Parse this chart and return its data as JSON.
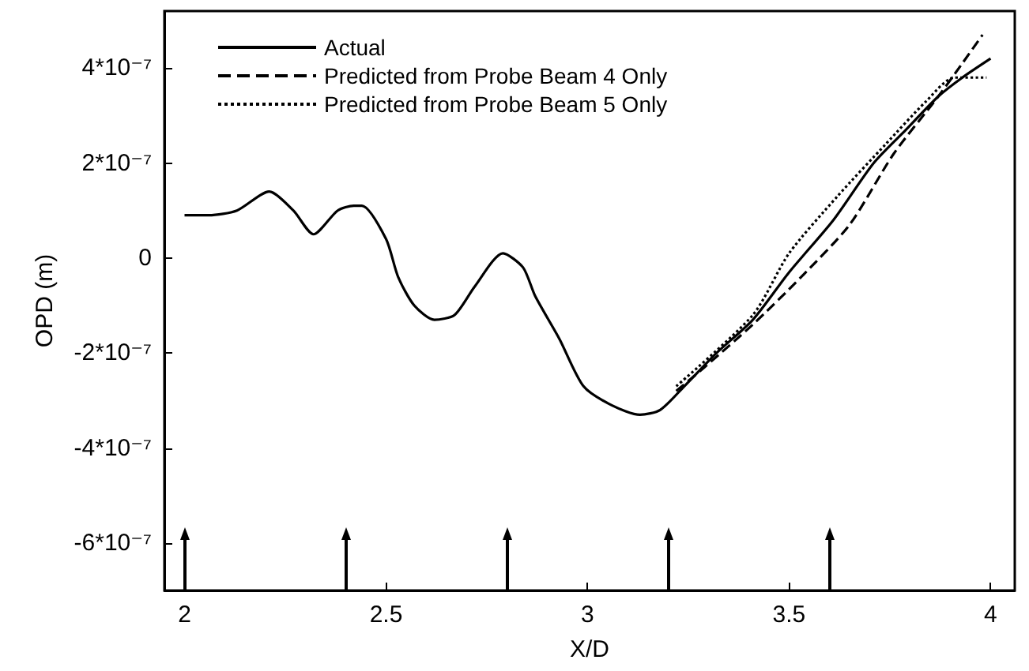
{
  "chart_data": {
    "type": "line",
    "xlabel": "X/D",
    "ylabel": "OPD (m)",
    "xlim": [
      1.95,
      4.06
    ],
    "xticks": [
      2,
      2.5,
      3,
      3.5,
      4
    ],
    "ylim": [
      -7e-07,
      5.2e-07
    ],
    "yticks": [
      {
        "value": -6e-07,
        "label": "-6*10⁻⁷"
      },
      {
        "value": -4e-07,
        "label": "-4*10⁻⁷"
      },
      {
        "value": -2e-07,
        "label": "-2*10⁻⁷"
      },
      {
        "value": 0,
        "label": "0"
      },
      {
        "value": 2e-07,
        "label": "2*10⁻⁷"
      },
      {
        "value": 4e-07,
        "label": "4*10⁻⁷"
      }
    ],
    "grid": false,
    "legend": "top left",
    "marker": "none",
    "series": [
      {
        "name": "Actual",
        "color": "#000000",
        "line_style": "solid",
        "x": [
          2.0,
          2.06,
          2.13,
          2.21,
          2.27,
          2.32,
          2.38,
          2.42,
          2.44,
          2.5,
          2.53,
          2.57,
          2.62,
          2.67,
          2.72,
          2.79,
          2.84,
          2.87,
          2.93,
          2.99,
          3.06,
          3.13,
          3.18,
          3.24,
          3.32,
          3.41,
          3.5,
          3.61,
          3.71,
          3.79,
          3.87,
          3.93,
          4.0
        ],
        "values": [
          9e-08,
          9e-08,
          1e-07,
          1.4e-07,
          1e-07,
          5e-08,
          1e-07,
          1.1e-07,
          1.1e-07,
          4e-08,
          -4e-08,
          -1e-07,
          -1.3e-07,
          -1.2e-07,
          -6e-08,
          1e-08,
          -2e-08,
          -8e-08,
          -1.7e-07,
          -2.7e-07,
          -3.1e-07,
          -3.3e-07,
          -3.2e-07,
          -2.7e-07,
          -2e-07,
          -1.3e-07,
          -3e-08,
          8e-08,
          2e-07,
          2.7e-07,
          3.4e-07,
          3.8e-07,
          4.2e-07
        ]
      },
      {
        "name": "Predicted from Probe Beam 4 Only",
        "color": "#000000",
        "line_style": "dashed",
        "x": [
          3.22,
          3.29,
          3.41,
          3.53,
          3.65,
          3.76,
          3.87,
          3.93,
          3.98
        ],
        "values": [
          -2.8e-07,
          -2.3e-07,
          -1.4e-07,
          -4e-08,
          7e-08,
          2.2e-07,
          3.4e-07,
          4.1e-07,
          4.7e-07
        ]
      },
      {
        "name": "Predicted from Probe Beam 5 Only",
        "color": "#000000",
        "line_style": "dotted",
        "x": [
          3.22,
          3.41,
          3.5,
          3.62,
          3.74,
          3.84,
          3.91,
          3.99
        ],
        "values": [
          -2.7e-07,
          -1.2e-07,
          1e-08,
          1.3e-07,
          2.4e-07,
          3.3e-07,
          3.8e-07,
          3.8e-07
        ]
      }
    ],
    "ref_lines": [
      {
        "axis": "x",
        "value": 2.0
      },
      {
        "axis": "x",
        "value": 2.4
      },
      {
        "axis": "x",
        "value": 2.8
      },
      {
        "axis": "x",
        "value": 3.2
      },
      {
        "axis": "x",
        "value": 3.6
      }
    ]
  }
}
